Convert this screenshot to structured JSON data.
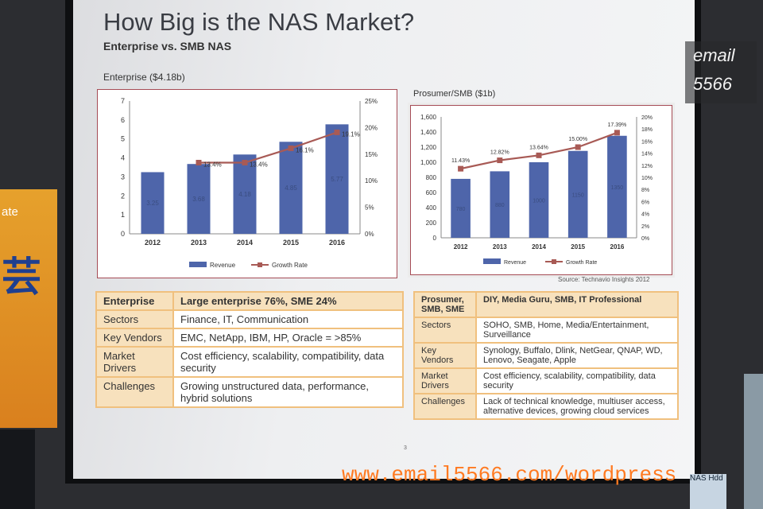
{
  "slide": {
    "title": "How Big is the NAS Market?",
    "subtitle": "Enterprise vs. SMB NAS",
    "page_number": "3",
    "source": "Source: Technavio Insights 2012"
  },
  "background": {
    "left_banner_text": "ate",
    "left_banner_glyph": "芸",
    "book_text": "NAS Hdd"
  },
  "watermark": {
    "email_line1": "email",
    "email_line2": "5566",
    "url": "www.email5566.com/wordpress"
  },
  "chart_data": [
    {
      "type": "bar",
      "title": "Enterprise ($4.18b)",
      "categories": [
        "2012",
        "2013",
        "2014",
        "2015",
        "2016"
      ],
      "y_ticks": [
        "0",
        "1",
        "2",
        "3",
        "4",
        "5",
        "6",
        "7"
      ],
      "y2_ticks": [
        "0%",
        "5%",
        "10%",
        "15%",
        "20%",
        "25%"
      ],
      "ylim": [
        0,
        7
      ],
      "y2lim": [
        0,
        25
      ],
      "series": [
        {
          "name": "Revenue",
          "kind": "bar",
          "values": [
            3.25,
            3.68,
            4.18,
            4.85,
            5.77
          ],
          "labels": [
            "3.25",
            "3.68",
            "4.18",
            "4.85",
            "5.77"
          ]
        },
        {
          "name": "Growth Rate",
          "kind": "line",
          "axis": "right",
          "values": [
            null,
            13.4,
            13.4,
            16.1,
            19.1
          ],
          "labels": [
            "",
            "13.4%",
            "13.4%",
            "16.1%",
            "19.1%"
          ]
        }
      ],
      "colors": {
        "bar": "#4e65aa",
        "line": "#a85a55"
      },
      "grid": false,
      "legend": "bottom"
    },
    {
      "type": "bar",
      "title": "Prosumer/SMB ($1b)",
      "categories": [
        "2012",
        "2013",
        "2014",
        "2015",
        "2016"
      ],
      "y_ticks": [
        "0",
        "200",
        "400",
        "600",
        "800",
        "1,000",
        "1,200",
        "1,400",
        "1,600"
      ],
      "y2_ticks": [
        "0%",
        "2%",
        "4%",
        "6%",
        "8%",
        "10%",
        "12%",
        "14%",
        "16%",
        "18%",
        "20%"
      ],
      "ylim": [
        0,
        1600
      ],
      "y2lim": [
        0,
        20
      ],
      "series": [
        {
          "name": "Revenue",
          "kind": "bar",
          "values": [
            780,
            880,
            1000,
            1150,
            1350
          ],
          "labels": [
            "780",
            "880",
            "1000",
            "1150",
            "1350"
          ]
        },
        {
          "name": "Growth Rate",
          "kind": "line",
          "axis": "right",
          "values": [
            11.43,
            12.82,
            13.64,
            15.0,
            17.39
          ],
          "labels": [
            "11.43%",
            "12.82%",
            "13.64%",
            "15.00%",
            "17.39%"
          ]
        }
      ],
      "colors": {
        "bar": "#4e65aa",
        "line": "#a85a55"
      },
      "grid": false,
      "legend": "bottom"
    }
  ],
  "tables": {
    "enterprise": {
      "rows": [
        [
          "Enterprise",
          "Large enterprise 76%, SME 24%"
        ],
        [
          "Sectors",
          "Finance, IT, Communication"
        ],
        [
          "Key Vendors",
          "EMC, NetApp, IBM, HP, Oracle = >85%"
        ],
        [
          "Market Drivers",
          "Cost efficiency, scalability, compatibility, data security"
        ],
        [
          "Challenges",
          "Growing unstructured data, performance, hybrid solutions"
        ]
      ]
    },
    "smb": {
      "rows": [
        [
          "Prosumer, SMB, SME",
          "DIY, Media Guru, SMB, IT Professional"
        ],
        [
          "Sectors",
          "SOHO, SMB, Home, Media/Entertainment, Surveillance"
        ],
        [
          "Key Vendors",
          "Synology, Buffalo, Dlink, NetGear, QNAP, WD, Lenovo, Seagate, Apple"
        ],
        [
          "Market Drivers",
          "Cost efficiency, scalability, compatibility, data security"
        ],
        [
          "Challenges",
          "Lack of technical knowledge, multiuser access, alternative devices, growing cloud services"
        ]
      ]
    }
  }
}
